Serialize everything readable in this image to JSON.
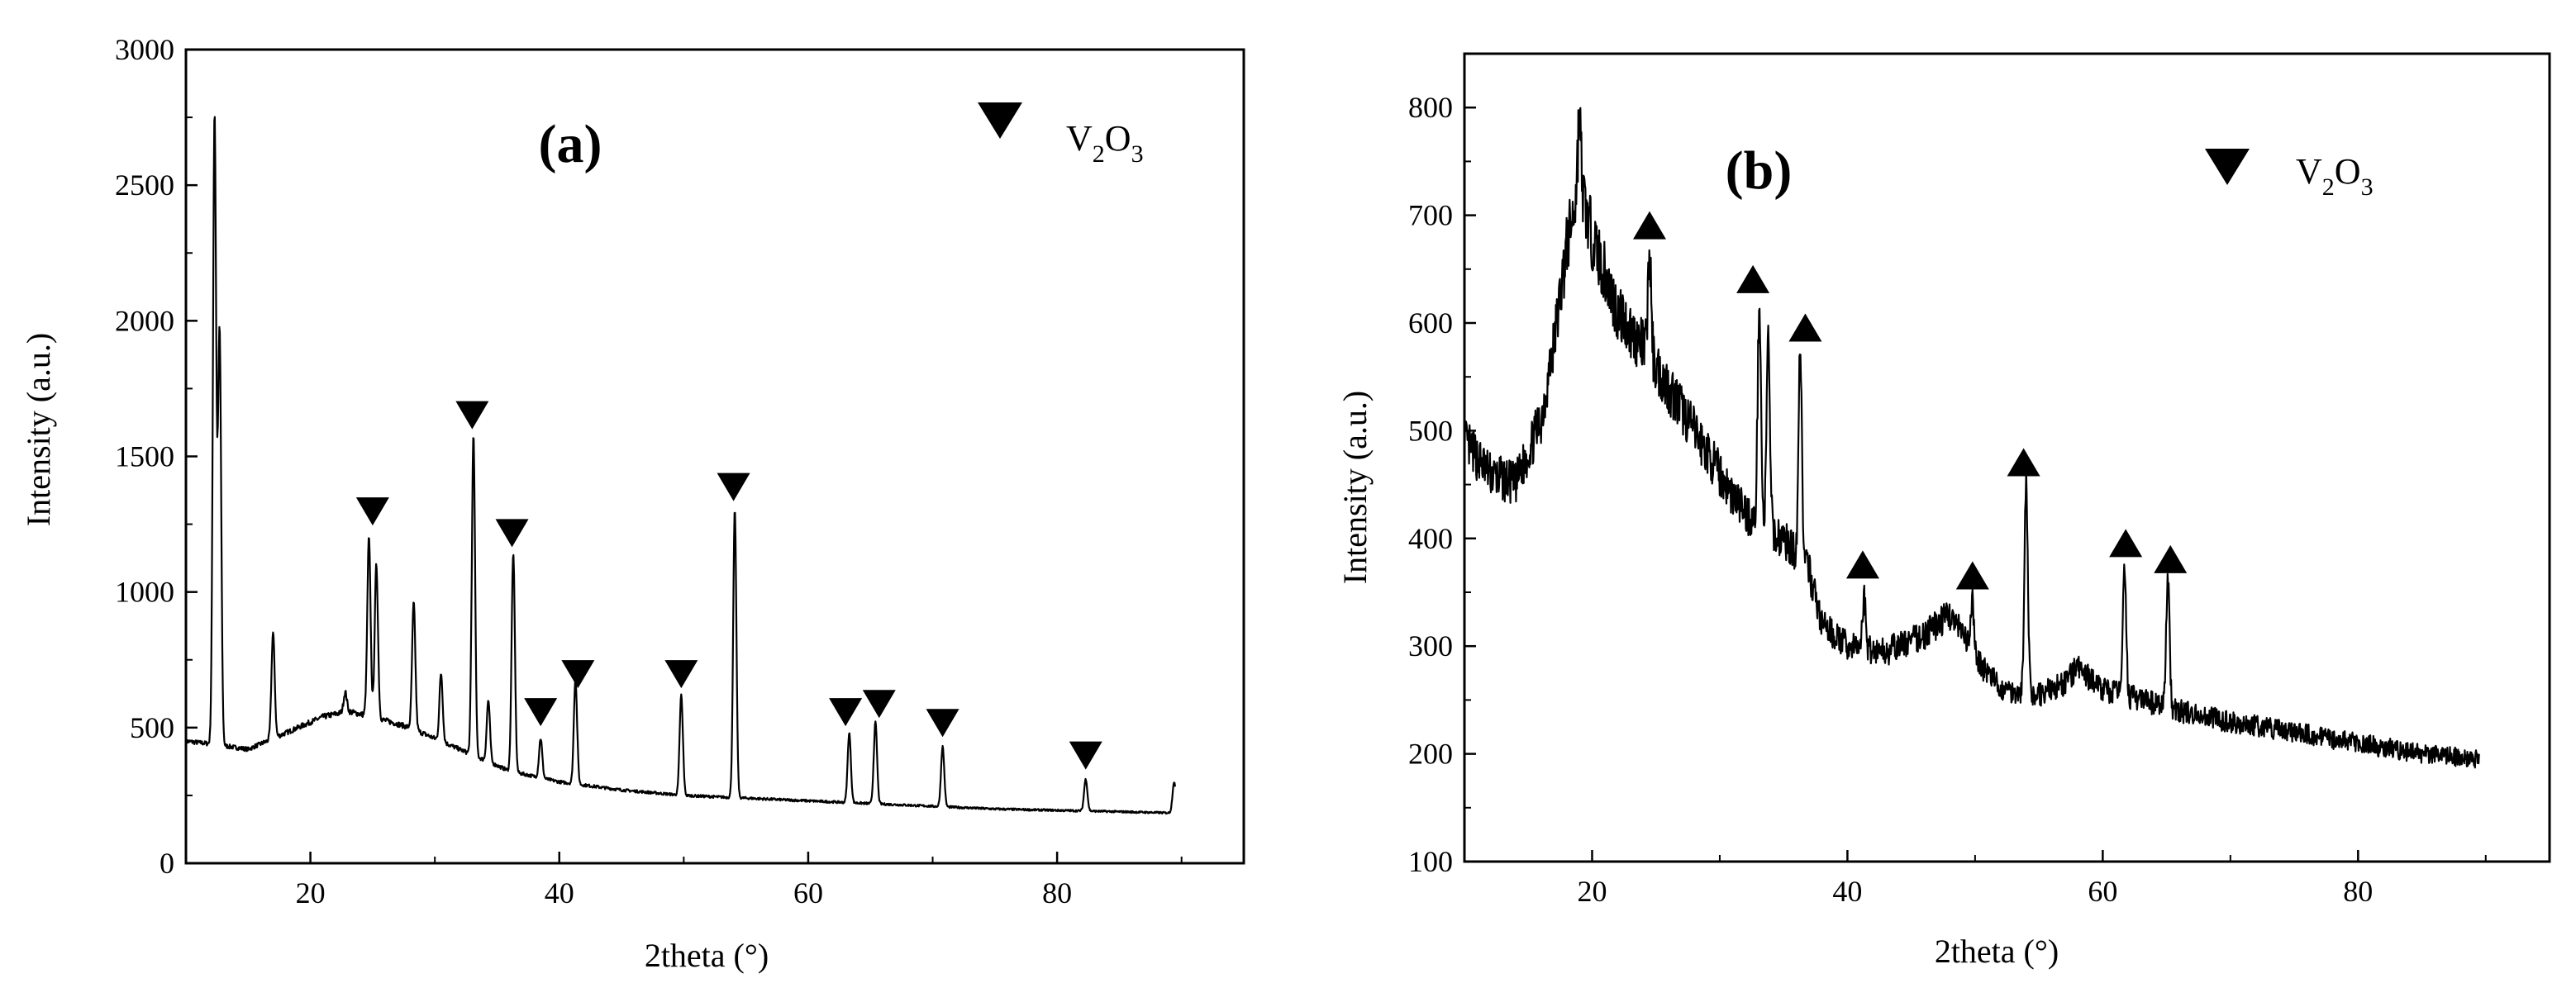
{
  "chart_data": [
    {
      "type": "line",
      "panel_label": "(a)",
      "xlabel": "2theta (°)",
      "ylabel": "Intensity (a.u.)",
      "xlim": [
        10,
        95
      ],
      "ylim": [
        0,
        3000
      ],
      "xticks": [
        20,
        40,
        60,
        80
      ],
      "yticks": [
        0,
        500,
        1000,
        1500,
        2000,
        2500,
        3000
      ],
      "legend": {
        "marker": "down-triangle",
        "label_main": "V",
        "sub1": "2",
        "label_mid": "O",
        "sub2": "3",
        "placement": "top-right"
      },
      "baseline": [
        [
          10,
          450
        ],
        [
          12,
          440
        ],
        [
          15,
          420
        ],
        [
          18,
          480
        ],
        [
          21,
          540
        ],
        [
          23,
          560
        ],
        [
          25,
          540
        ],
        [
          28,
          500
        ],
        [
          30,
          460
        ],
        [
          33,
          400
        ],
        [
          36,
          340
        ],
        [
          40,
          300
        ],
        [
          45,
          270
        ],
        [
          50,
          250
        ],
        [
          55,
          240
        ],
        [
          60,
          230
        ],
        [
          65,
          220
        ],
        [
          70,
          210
        ],
        [
          75,
          200
        ],
        [
          80,
          195
        ],
        [
          85,
          190
        ],
        [
          89.5,
          185
        ]
      ],
      "peaks": [
        {
          "x": 12.3,
          "y": 2760
        },
        {
          "x": 12.7,
          "y": 1960
        },
        {
          "x": 17.0,
          "y": 850
        },
        {
          "x": 22.8,
          "y": 630
        },
        {
          "x": 24.7,
          "y": 1200
        },
        {
          "x": 25.3,
          "y": 1100
        },
        {
          "x": 28.3,
          "y": 960
        },
        {
          "x": 30.5,
          "y": 700
        },
        {
          "x": 33.1,
          "y": 1580
        },
        {
          "x": 34.3,
          "y": 600
        },
        {
          "x": 36.3,
          "y": 1140
        },
        {
          "x": 38.5,
          "y": 460
        },
        {
          "x": 41.3,
          "y": 680
        },
        {
          "x": 49.8,
          "y": 620
        },
        {
          "x": 54.1,
          "y": 1300
        },
        {
          "x": 63.3,
          "y": 480
        },
        {
          "x": 65.4,
          "y": 520
        },
        {
          "x": 70.8,
          "y": 430
        },
        {
          "x": 82.3,
          "y": 310
        },
        {
          "x": 89.4,
          "y": 300
        }
      ],
      "markers": [
        {
          "x": 25.0,
          "y": 1300
        },
        {
          "x": 33.0,
          "y": 1655
        },
        {
          "x": 36.2,
          "y": 1220
        },
        {
          "x": 38.5,
          "y": 560
        },
        {
          "x": 41.5,
          "y": 700
        },
        {
          "x": 49.8,
          "y": 700
        },
        {
          "x": 54.0,
          "y": 1390
        },
        {
          "x": 63.0,
          "y": 560
        },
        {
          "x": 65.7,
          "y": 590
        },
        {
          "x": 70.8,
          "y": 520
        },
        {
          "x": 82.3,
          "y": 400
        }
      ]
    },
    {
      "type": "line",
      "panel_label": "(b)",
      "xlabel": "2theta (°)",
      "ylabel": "Intensity (a.u.)",
      "xlim": [
        10,
        95
      ],
      "ylim": [
        100,
        850
      ],
      "xticks": [
        20,
        40,
        60,
        80
      ],
      "yticks": [
        100,
        200,
        300,
        400,
        500,
        600,
        700,
        800
      ],
      "legend": {
        "marker": "down-triangle",
        "label_main": "V",
        "sub1": "2",
        "label_mid": "O",
        "sub2": "3",
        "placement": "top-right"
      },
      "baseline": [
        [
          10,
          490
        ],
        [
          12,
          460
        ],
        [
          14,
          450
        ],
        [
          16,
          510
        ],
        [
          17,
          580
        ],
        [
          18,
          670
        ],
        [
          19,
          730
        ],
        [
          20,
          680
        ],
        [
          22,
          610
        ],
        [
          25,
          560
        ],
        [
          28,
          500
        ],
        [
          31,
          440
        ],
        [
          33,
          410
        ],
        [
          35,
          400
        ],
        [
          37,
          370
        ],
        [
          38,
          320
        ],
        [
          40,
          300
        ],
        [
          43,
          295
        ],
        [
          46,
          310
        ],
        [
          48,
          330
        ],
        [
          50,
          290
        ],
        [
          52,
          260
        ],
        [
          55,
          255
        ],
        [
          57,
          265
        ],
        [
          58,
          280
        ],
        [
          60,
          260
        ],
        [
          63,
          250
        ],
        [
          66,
          240
        ],
        [
          70,
          230
        ],
        [
          75,
          220
        ],
        [
          80,
          210
        ],
        [
          85,
          200
        ],
        [
          89.5,
          195
        ]
      ],
      "peaks": [
        {
          "x": 19.0,
          "y": 790
        },
        {
          "x": 24.5,
          "y": 665
        },
        {
          "x": 33.1,
          "y": 620
        },
        {
          "x": 33.8,
          "y": 585
        },
        {
          "x": 36.3,
          "y": 580
        },
        {
          "x": 41.3,
          "y": 345
        },
        {
          "x": 49.8,
          "y": 340
        },
        {
          "x": 54.0,
          "y": 455
        },
        {
          "x": 61.7,
          "y": 380
        },
        {
          "x": 65.1,
          "y": 365
        }
      ],
      "markers": [
        {
          "x": 24.5,
          "y": 690
        },
        {
          "x": 32.6,
          "y": 640
        },
        {
          "x": 36.7,
          "y": 595
        },
        {
          "x": 41.2,
          "y": 375
        },
        {
          "x": 49.8,
          "y": 365
        },
        {
          "x": 53.8,
          "y": 470
        },
        {
          "x": 61.8,
          "y": 395
        },
        {
          "x": 65.3,
          "y": 380
        }
      ]
    }
  ]
}
